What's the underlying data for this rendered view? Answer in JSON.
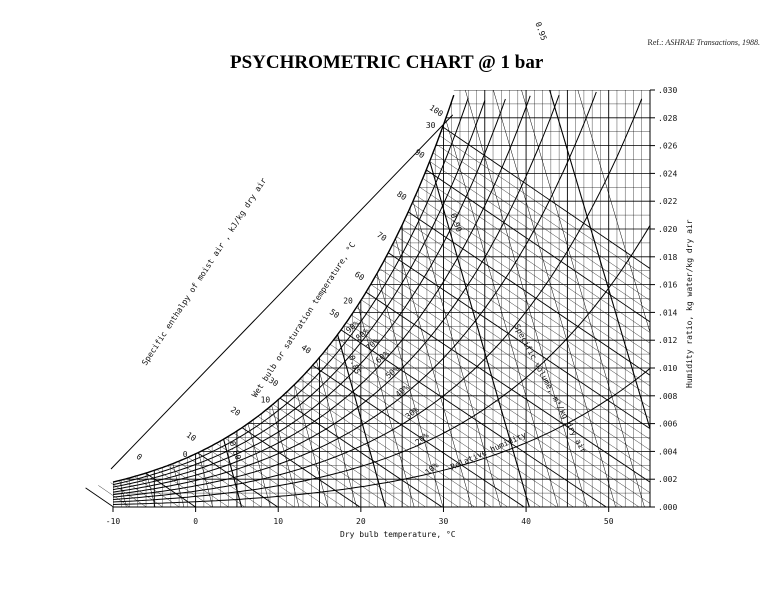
{
  "reference": {
    "prefix": "Ref.: ",
    "source": "ASHRAE Transactions, 1988."
  },
  "chart_data": {
    "type": "line",
    "title": "PSYCHROMETRIC CHART @ 1 bar",
    "xlabel": "Dry bulb temperature, °C",
    "ylabel": "Humidity ratio, kg water/kg dry air",
    "xlim": [
      -10,
      55
    ],
    "ylim": [
      0,
      0.03
    ],
    "x_ticks": [
      "-10",
      "0",
      "10",
      "20",
      "30",
      "40",
      "50"
    ],
    "y_ticks": [
      ".000",
      ".002",
      ".004",
      ".006",
      ".008",
      ".010",
      ".012",
      ".014",
      ".016",
      ".018",
      ".020",
      ".022",
      ".024",
      ".026",
      ".028",
      ".030"
    ],
    "enthalpy_axis_label": "Specific enthalpy of moist air , kJ/kg dry air",
    "enthalpy_ticks": [
      "0",
      "10",
      "20",
      "30",
      "40",
      "50",
      "60",
      "70",
      "80",
      "90",
      "100"
    ],
    "wet_bulb_label": "Wet bulb or saturation temperature, °C",
    "wet_bulb_ticks": [
      "0",
      "10",
      "20",
      "30"
    ],
    "relative_humidity_label": "Relative humidity",
    "relative_humidity_ticks": [
      "10%",
      "20%",
      "30%",
      "40%",
      "50%",
      "60%",
      "70%",
      "80%",
      "90%"
    ],
    "specific_volume_label": "Specific volume, m³/kg dry air",
    "specific_volume_ticks": [
      "0.80",
      "0.85",
      "0.90",
      "0.95"
    ]
  }
}
